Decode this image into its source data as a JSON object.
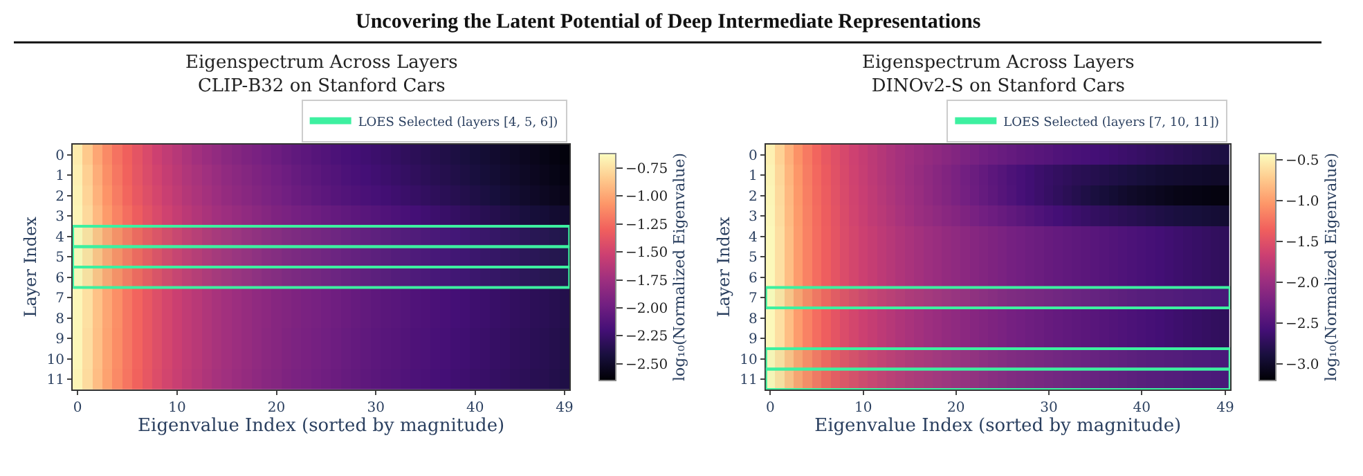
{
  "chart_data": [
    {
      "type": "heatmap",
      "title": "Eigenspectrum Across Layers\nCLIP-B32 on Stanford Cars",
      "xlabel": "Eigenvalue Index (sorted by magnitude)",
      "ylabel": "Layer Index",
      "clabel": "log₁₀(Normalized Eigenvalue)",
      "annotations": [
        "Uncovering the Latent Potential of Deep Intermediate Representations"
      ],
      "x": [
        0,
        1,
        2,
        3,
        4,
        5,
        6,
        7,
        8,
        9,
        10,
        11,
        12,
        13,
        14,
        15,
        16,
        17,
        18,
        19,
        20,
        21,
        22,
        23,
        24,
        25,
        26,
        27,
        28,
        29,
        30,
        31,
        32,
        33,
        34,
        35,
        36,
        37,
        38,
        39,
        40,
        41,
        42,
        43,
        44,
        45,
        46,
        47,
        48,
        49
      ],
      "xlim": [
        -0.5,
        49.5
      ],
      "xticks": [
        0,
        10,
        20,
        30,
        40,
        49
      ],
      "y_categories": [
        "0",
        "1",
        "2",
        "3",
        "4",
        "5",
        "6",
        "7",
        "8",
        "9",
        "10",
        "11"
      ],
      "clim": [
        -2.65,
        -0.62
      ],
      "cticks": [
        {
          "value": -0.75,
          "label": "−0.75"
        },
        {
          "value": -1.0,
          "label": "−1.00"
        },
        {
          "value": -1.25,
          "label": "−1.25"
        },
        {
          "value": -1.5,
          "label": "−1.50"
        },
        {
          "value": -1.75,
          "label": "−1.75"
        },
        {
          "value": -2.0,
          "label": "−2.00"
        },
        {
          "value": -2.25,
          "label": "−2.25"
        },
        {
          "value": -2.5,
          "label": "−2.50"
        }
      ],
      "bands": [
        {
          "axis": "y",
          "from": "4",
          "to": "4",
          "label": "LOES Selected (layers [4, 5, 6])",
          "color": "#3df0a0"
        },
        {
          "axis": "y",
          "from": "5",
          "to": "5",
          "color": "#3df0a0"
        },
        {
          "axis": "y",
          "from": "6",
          "to": "6",
          "color": "#3df0a0"
        }
      ],
      "cells": [
        [
          -0.7,
          -0.85,
          -1.0,
          -1.12,
          -1.22,
          -1.3,
          -1.38,
          -1.45,
          -1.52,
          -1.58,
          -1.63,
          -1.68,
          -1.73,
          -1.77,
          -1.81,
          -1.85,
          -1.88,
          -1.91,
          -1.94,
          -1.97,
          -2.0,
          -2.03,
          -2.06,
          -2.08,
          -2.11,
          -2.13,
          -2.16,
          -2.18,
          -2.2,
          -2.22,
          -2.24,
          -2.26,
          -2.28,
          -2.3,
          -2.32,
          -2.34,
          -2.36,
          -2.38,
          -2.4,
          -2.42,
          -2.44,
          -2.46,
          -2.48,
          -2.5,
          -2.52,
          -2.54,
          -2.56,
          -2.58,
          -2.6,
          -2.62
        ],
        [
          -0.68,
          -0.82,
          -0.97,
          -1.1,
          -1.2,
          -1.29,
          -1.37,
          -1.44,
          -1.5,
          -1.56,
          -1.61,
          -1.66,
          -1.7,
          -1.74,
          -1.78,
          -1.82,
          -1.85,
          -1.88,
          -1.91,
          -1.94,
          -1.97,
          -2.0,
          -2.03,
          -2.06,
          -2.08,
          -2.11,
          -2.13,
          -2.16,
          -2.18,
          -2.2,
          -2.22,
          -2.24,
          -2.26,
          -2.28,
          -2.3,
          -2.32,
          -2.34,
          -2.36,
          -2.38,
          -2.4,
          -2.42,
          -2.44,
          -2.46,
          -2.48,
          -2.5,
          -2.52,
          -2.54,
          -2.56,
          -2.58,
          -2.6
        ],
        [
          -0.67,
          -0.8,
          -0.95,
          -1.08,
          -1.18,
          -1.27,
          -1.35,
          -1.42,
          -1.48,
          -1.54,
          -1.59,
          -1.64,
          -1.68,
          -1.72,
          -1.76,
          -1.8,
          -1.83,
          -1.86,
          -1.89,
          -1.92,
          -1.95,
          -1.98,
          -2.01,
          -2.03,
          -2.06,
          -2.08,
          -2.11,
          -2.13,
          -2.15,
          -2.17,
          -2.19,
          -2.21,
          -2.23,
          -2.25,
          -2.27,
          -2.29,
          -2.31,
          -2.33,
          -2.35,
          -2.37,
          -2.39,
          -2.41,
          -2.43,
          -2.45,
          -2.47,
          -2.49,
          -2.51,
          -2.53,
          -2.55,
          -2.57
        ],
        [
          -0.66,
          -0.78,
          -0.92,
          -1.05,
          -1.15,
          -1.24,
          -1.32,
          -1.39,
          -1.45,
          -1.51,
          -1.56,
          -1.61,
          -1.65,
          -1.69,
          -1.73,
          -1.76,
          -1.79,
          -1.82,
          -1.85,
          -1.88,
          -1.91,
          -1.93,
          -1.96,
          -1.98,
          -2.0,
          -2.02,
          -2.04,
          -2.06,
          -2.08,
          -2.1,
          -2.12,
          -2.14,
          -2.16,
          -2.18,
          -2.2,
          -2.22,
          -2.24,
          -2.26,
          -2.28,
          -2.3,
          -2.32,
          -2.34,
          -2.36,
          -2.38,
          -2.4,
          -2.42,
          -2.44,
          -2.45,
          -2.47,
          -2.48
        ],
        [
          -0.64,
          -0.75,
          -0.88,
          -1.0,
          -1.1,
          -1.19,
          -1.27,
          -1.34,
          -1.4,
          -1.46,
          -1.51,
          -1.56,
          -1.6,
          -1.64,
          -1.68,
          -1.71,
          -1.74,
          -1.77,
          -1.8,
          -1.83,
          -1.85,
          -1.88,
          -1.9,
          -1.92,
          -1.94,
          -1.96,
          -1.98,
          -2.0,
          -2.02,
          -2.04,
          -2.06,
          -2.08,
          -2.1,
          -2.12,
          -2.13,
          -2.15,
          -2.17,
          -2.19,
          -2.2,
          -2.22,
          -2.24,
          -2.25,
          -2.27,
          -2.29,
          -2.3,
          -2.32,
          -2.34,
          -2.35,
          -2.37,
          -2.38
        ],
        [
          -0.64,
          -0.75,
          -0.88,
          -1.0,
          -1.1,
          -1.19,
          -1.27,
          -1.34,
          -1.41,
          -1.47,
          -1.52,
          -1.57,
          -1.61,
          -1.65,
          -1.69,
          -1.72,
          -1.75,
          -1.78,
          -1.81,
          -1.84,
          -1.86,
          -1.89,
          -1.91,
          -1.93,
          -1.95,
          -1.97,
          -1.99,
          -2.01,
          -2.03,
          -2.05,
          -2.07,
          -2.09,
          -2.11,
          -2.12,
          -2.14,
          -2.16,
          -2.18,
          -2.19,
          -2.21,
          -2.22,
          -2.24,
          -2.26,
          -2.27,
          -2.29,
          -2.3,
          -2.32,
          -2.33,
          -2.35,
          -2.36,
          -2.37
        ],
        [
          -0.64,
          -0.75,
          -0.88,
          -1.0,
          -1.1,
          -1.19,
          -1.27,
          -1.34,
          -1.41,
          -1.47,
          -1.52,
          -1.57,
          -1.61,
          -1.65,
          -1.69,
          -1.72,
          -1.75,
          -1.78,
          -1.81,
          -1.84,
          -1.86,
          -1.89,
          -1.91,
          -1.93,
          -1.95,
          -1.97,
          -1.99,
          -2.01,
          -2.03,
          -2.05,
          -2.07,
          -2.09,
          -2.11,
          -2.12,
          -2.14,
          -2.16,
          -2.18,
          -2.19,
          -2.21,
          -2.22,
          -2.24,
          -2.26,
          -2.27,
          -2.29,
          -2.3,
          -2.32,
          -2.33,
          -2.35,
          -2.36,
          -2.37
        ],
        [
          -0.65,
          -0.75,
          -0.88,
          -1.0,
          -1.1,
          -1.2,
          -1.28,
          -1.35,
          -1.42,
          -1.48,
          -1.53,
          -1.58,
          -1.62,
          -1.66,
          -1.7,
          -1.73,
          -1.76,
          -1.79,
          -1.82,
          -1.84,
          -1.87,
          -1.89,
          -1.91,
          -1.93,
          -1.95,
          -1.97,
          -1.99,
          -2.01,
          -2.03,
          -2.05,
          -2.07,
          -2.09,
          -2.1,
          -2.12,
          -2.14,
          -2.15,
          -2.17,
          -2.18,
          -2.2,
          -2.21,
          -2.23,
          -2.24,
          -2.26,
          -2.27,
          -2.29,
          -2.3,
          -2.32,
          -2.33,
          -2.35,
          -2.37
        ],
        [
          -0.65,
          -0.75,
          -0.88,
          -1.0,
          -1.1,
          -1.2,
          -1.28,
          -1.35,
          -1.42,
          -1.48,
          -1.53,
          -1.58,
          -1.62,
          -1.66,
          -1.7,
          -1.73,
          -1.76,
          -1.79,
          -1.82,
          -1.84,
          -1.87,
          -1.89,
          -1.91,
          -1.93,
          -1.95,
          -1.97,
          -1.99,
          -2.01,
          -2.03,
          -2.05,
          -2.07,
          -2.09,
          -2.1,
          -2.12,
          -2.14,
          -2.15,
          -2.17,
          -2.18,
          -2.2,
          -2.21,
          -2.23,
          -2.24,
          -2.26,
          -2.27,
          -2.29,
          -2.3,
          -2.32,
          -2.33,
          -2.35,
          -2.37
        ],
        [
          -0.65,
          -0.76,
          -0.89,
          -1.01,
          -1.11,
          -1.2,
          -1.28,
          -1.35,
          -1.42,
          -1.48,
          -1.53,
          -1.58,
          -1.62,
          -1.66,
          -1.7,
          -1.73,
          -1.76,
          -1.79,
          -1.82,
          -1.85,
          -1.87,
          -1.9,
          -1.92,
          -1.94,
          -1.96,
          -1.98,
          -2.0,
          -2.02,
          -2.04,
          -2.06,
          -2.08,
          -2.1,
          -2.11,
          -2.13,
          -2.15,
          -2.16,
          -2.18,
          -2.19,
          -2.21,
          -2.22,
          -2.24,
          -2.25,
          -2.27,
          -2.28,
          -2.3,
          -2.31,
          -2.33,
          -2.34,
          -2.36,
          -2.38
        ],
        [
          -0.65,
          -0.76,
          -0.89,
          -1.01,
          -1.11,
          -1.2,
          -1.28,
          -1.35,
          -1.42,
          -1.48,
          -1.53,
          -1.58,
          -1.62,
          -1.66,
          -1.7,
          -1.73,
          -1.76,
          -1.79,
          -1.82,
          -1.85,
          -1.87,
          -1.9,
          -1.92,
          -1.94,
          -1.96,
          -1.98,
          -2.0,
          -2.02,
          -2.04,
          -2.06,
          -2.08,
          -2.1,
          -2.11,
          -2.13,
          -2.15,
          -2.16,
          -2.18,
          -2.19,
          -2.21,
          -2.22,
          -2.24,
          -2.25,
          -2.27,
          -2.28,
          -2.3,
          -2.31,
          -2.33,
          -2.34,
          -2.36,
          -2.38
        ],
        [
          -0.66,
          -0.77,
          -0.9,
          -1.02,
          -1.12,
          -1.21,
          -1.29,
          -1.36,
          -1.43,
          -1.49,
          -1.54,
          -1.59,
          -1.63,
          -1.67,
          -1.71,
          -1.74,
          -1.77,
          -1.8,
          -1.83,
          -1.86,
          -1.88,
          -1.91,
          -1.93,
          -1.95,
          -1.97,
          -1.99,
          -2.01,
          -2.03,
          -2.05,
          -2.07,
          -2.09,
          -2.11,
          -2.12,
          -2.14,
          -2.16,
          -2.17,
          -2.19,
          -2.2,
          -2.22,
          -2.23,
          -2.25,
          -2.26,
          -2.28,
          -2.29,
          -2.31,
          -2.32,
          -2.34,
          -2.35,
          -2.37,
          -2.39
        ]
      ]
    },
    {
      "type": "heatmap",
      "title": "Eigenspectrum Across Layers\nDINOv2-S on Stanford Cars",
      "xlabel": "Eigenvalue Index (sorted by magnitude)",
      "ylabel": "Layer Index",
      "clabel": "log₁₀(Normalized Eigenvalue)",
      "x": [
        0,
        1,
        2,
        3,
        4,
        5,
        6,
        7,
        8,
        9,
        10,
        11,
        12,
        13,
        14,
        15,
        16,
        17,
        18,
        19,
        20,
        21,
        22,
        23,
        24,
        25,
        26,
        27,
        28,
        29,
        30,
        31,
        32,
        33,
        34,
        35,
        36,
        37,
        38,
        39,
        40,
        41,
        42,
        43,
        44,
        45,
        46,
        47,
        48,
        49
      ],
      "xlim": [
        -0.5,
        49.5
      ],
      "xticks": [
        0,
        10,
        20,
        30,
        40,
        49
      ],
      "y_categories": [
        "0",
        "1",
        "2",
        "3",
        "4",
        "5",
        "6",
        "7",
        "8",
        "9",
        "10",
        "11"
      ],
      "clim": [
        -3.2,
        -0.42
      ],
      "cticks": [
        {
          "value": -0.5,
          "label": "−0.5"
        },
        {
          "value": -1.0,
          "label": "−1.0"
        },
        {
          "value": -1.5,
          "label": "−1.5"
        },
        {
          "value": -2.0,
          "label": "−2.0"
        },
        {
          "value": -2.5,
          "label": "−2.5"
        },
        {
          "value": -3.0,
          "label": "−3.0"
        }
      ],
      "bands": [
        {
          "axis": "y",
          "from": "7",
          "to": "7",
          "label": "LOES Selected (layers [7, 10, 11])",
          "color": "#3df0a0"
        },
        {
          "axis": "y",
          "from": "10",
          "to": "10",
          "color": "#3df0a0"
        },
        {
          "axis": "y",
          "from": "11",
          "to": "11",
          "color": "#3df0a0"
        }
      ],
      "cells": [
        [
          -0.5,
          -0.68,
          -0.88,
          -1.06,
          -1.2,
          -1.32,
          -1.42,
          -1.5,
          -1.58,
          -1.65,
          -1.71,
          -1.77,
          -1.82,
          -1.87,
          -1.92,
          -1.96,
          -2.0,
          -2.04,
          -2.08,
          -2.12,
          -2.16,
          -2.2,
          -2.24,
          -2.28,
          -2.31,
          -2.34,
          -2.37,
          -2.4,
          -2.42,
          -2.45,
          -2.47,
          -2.5,
          -2.52,
          -2.54,
          -2.56,
          -2.58,
          -2.6,
          -2.62,
          -2.64,
          -2.66,
          -2.68,
          -2.7,
          -2.72,
          -2.74,
          -2.76,
          -2.78,
          -2.8,
          -2.82,
          -2.84,
          -2.86
        ],
        [
          -0.48,
          -0.65,
          -0.85,
          -1.03,
          -1.18,
          -1.3,
          -1.4,
          -1.49,
          -1.57,
          -1.64,
          -1.7,
          -1.76,
          -1.82,
          -1.87,
          -1.92,
          -1.97,
          -2.02,
          -2.07,
          -2.12,
          -2.17,
          -2.22,
          -2.27,
          -2.32,
          -2.37,
          -2.42,
          -2.47,
          -2.52,
          -2.56,
          -2.6,
          -2.64,
          -2.67,
          -2.7,
          -2.73,
          -2.76,
          -2.78,
          -2.8,
          -2.82,
          -2.84,
          -2.86,
          -2.88,
          -2.9,
          -2.92,
          -2.94,
          -2.95,
          -2.96,
          -2.97,
          -2.98,
          -2.99,
          -3.0,
          -3.0
        ],
        [
          -0.47,
          -0.63,
          -0.83,
          -1.02,
          -1.17,
          -1.29,
          -1.39,
          -1.48,
          -1.56,
          -1.63,
          -1.69,
          -1.75,
          -1.81,
          -1.86,
          -1.91,
          -1.96,
          -2.01,
          -2.06,
          -2.11,
          -2.16,
          -2.21,
          -2.26,
          -2.31,
          -2.36,
          -2.41,
          -2.46,
          -2.51,
          -2.56,
          -2.6,
          -2.64,
          -2.68,
          -2.72,
          -2.76,
          -2.8,
          -2.84,
          -2.88,
          -2.91,
          -2.94,
          -2.97,
          -3.0,
          -3.02,
          -3.04,
          -3.06,
          -3.08,
          -3.1,
          -3.11,
          -3.12,
          -3.13,
          -3.14,
          -3.15
        ],
        [
          -0.46,
          -0.62,
          -0.82,
          -1.01,
          -1.16,
          -1.28,
          -1.38,
          -1.47,
          -1.55,
          -1.62,
          -1.68,
          -1.74,
          -1.79,
          -1.84,
          -1.89,
          -1.94,
          -1.99,
          -2.03,
          -2.07,
          -2.11,
          -2.15,
          -2.19,
          -2.23,
          -2.27,
          -2.31,
          -2.35,
          -2.39,
          -2.43,
          -2.47,
          -2.51,
          -2.55,
          -2.58,
          -2.61,
          -2.64,
          -2.67,
          -2.7,
          -2.72,
          -2.74,
          -2.76,
          -2.78,
          -2.8,
          -2.82,
          -2.84,
          -2.86,
          -2.88,
          -2.89,
          -2.9,
          -2.92,
          -2.93,
          -2.95
        ],
        [
          -0.45,
          -0.6,
          -0.8,
          -1.0,
          -1.15,
          -1.27,
          -1.37,
          -1.46,
          -1.54,
          -1.6,
          -1.66,
          -1.71,
          -1.76,
          -1.81,
          -1.85,
          -1.89,
          -1.93,
          -1.97,
          -2.0,
          -2.04,
          -2.07,
          -2.1,
          -2.13,
          -2.16,
          -2.19,
          -2.22,
          -2.25,
          -2.27,
          -2.3,
          -2.32,
          -2.35,
          -2.37,
          -2.39,
          -2.41,
          -2.43,
          -2.45,
          -2.47,
          -2.49,
          -2.51,
          -2.53,
          -2.55,
          -2.57,
          -2.59,
          -2.61,
          -2.63,
          -2.65,
          -2.67,
          -2.69,
          -2.71,
          -2.73
        ],
        [
          -0.45,
          -0.6,
          -0.8,
          -1.0,
          -1.15,
          -1.27,
          -1.37,
          -1.46,
          -1.54,
          -1.6,
          -1.66,
          -1.71,
          -1.76,
          -1.81,
          -1.85,
          -1.89,
          -1.93,
          -1.97,
          -2.0,
          -2.04,
          -2.07,
          -2.1,
          -2.13,
          -2.16,
          -2.19,
          -2.22,
          -2.25,
          -2.27,
          -2.3,
          -2.32,
          -2.35,
          -2.37,
          -2.39,
          -2.41,
          -2.43,
          -2.45,
          -2.47,
          -2.49,
          -2.51,
          -2.53,
          -2.55,
          -2.57,
          -2.59,
          -2.61,
          -2.63,
          -2.65,
          -2.67,
          -2.69,
          -2.71,
          -2.73
        ],
        [
          -0.45,
          -0.6,
          -0.8,
          -1.0,
          -1.15,
          -1.27,
          -1.37,
          -1.46,
          -1.54,
          -1.6,
          -1.66,
          -1.71,
          -1.76,
          -1.81,
          -1.85,
          -1.89,
          -1.93,
          -1.97,
          -2.0,
          -2.04,
          -2.07,
          -2.1,
          -2.13,
          -2.16,
          -2.19,
          -2.22,
          -2.25,
          -2.27,
          -2.3,
          -2.32,
          -2.35,
          -2.37,
          -2.39,
          -2.41,
          -2.43,
          -2.45,
          -2.47,
          -2.49,
          -2.51,
          -2.53,
          -2.55,
          -2.57,
          -2.59,
          -2.61,
          -2.63,
          -2.65,
          -2.67,
          -2.69,
          -2.71,
          -2.73
        ],
        [
          -0.44,
          -0.58,
          -0.77,
          -0.96,
          -1.11,
          -1.23,
          -1.33,
          -1.42,
          -1.49,
          -1.55,
          -1.61,
          -1.66,
          -1.71,
          -1.75,
          -1.79,
          -1.83,
          -1.86,
          -1.89,
          -1.92,
          -1.95,
          -1.98,
          -2.01,
          -2.04,
          -2.07,
          -2.1,
          -2.13,
          -2.16,
          -2.18,
          -2.2,
          -2.22,
          -2.24,
          -2.26,
          -2.28,
          -2.3,
          -2.32,
          -2.34,
          -2.36,
          -2.38,
          -2.4,
          -2.42,
          -2.44,
          -2.45,
          -2.46,
          -2.47,
          -2.48,
          -2.5,
          -2.51,
          -2.52,
          -2.54,
          -2.55
        ],
        [
          -0.45,
          -0.6,
          -0.8,
          -1.0,
          -1.15,
          -1.27,
          -1.37,
          -1.46,
          -1.54,
          -1.6,
          -1.66,
          -1.71,
          -1.76,
          -1.81,
          -1.85,
          -1.89,
          -1.93,
          -1.97,
          -2.0,
          -2.04,
          -2.07,
          -2.1,
          -2.13,
          -2.16,
          -2.19,
          -2.22,
          -2.25,
          -2.27,
          -2.3,
          -2.32,
          -2.35,
          -2.37,
          -2.39,
          -2.41,
          -2.43,
          -2.45,
          -2.47,
          -2.49,
          -2.51,
          -2.53,
          -2.55,
          -2.57,
          -2.59,
          -2.61,
          -2.63,
          -2.65,
          -2.67,
          -2.69,
          -2.71,
          -2.73
        ],
        [
          -0.45,
          -0.6,
          -0.8,
          -1.0,
          -1.15,
          -1.27,
          -1.37,
          -1.46,
          -1.54,
          -1.6,
          -1.66,
          -1.71,
          -1.76,
          -1.81,
          -1.85,
          -1.89,
          -1.93,
          -1.97,
          -2.0,
          -2.04,
          -2.07,
          -2.1,
          -2.13,
          -2.16,
          -2.19,
          -2.22,
          -2.25,
          -2.27,
          -2.3,
          -2.32,
          -2.35,
          -2.37,
          -2.39,
          -2.41,
          -2.43,
          -2.45,
          -2.47,
          -2.49,
          -2.51,
          -2.53,
          -2.55,
          -2.57,
          -2.59,
          -2.61,
          -2.63,
          -2.65,
          -2.67,
          -2.69,
          -2.71,
          -2.73
        ],
        [
          -0.46,
          -0.6,
          -0.78,
          -0.96,
          -1.1,
          -1.22,
          -1.32,
          -1.41,
          -1.48,
          -1.54,
          -1.6,
          -1.65,
          -1.7,
          -1.74,
          -1.78,
          -1.82,
          -1.85,
          -1.88,
          -1.91,
          -1.94,
          -1.97,
          -2.0,
          -2.03,
          -2.06,
          -2.09,
          -2.12,
          -2.15,
          -2.17,
          -2.19,
          -2.21,
          -2.23,
          -2.25,
          -2.27,
          -2.29,
          -2.31,
          -2.33,
          -2.35,
          -2.37,
          -2.39,
          -2.41,
          -2.43,
          -2.44,
          -2.45,
          -2.46,
          -2.47,
          -2.49,
          -2.5,
          -2.51,
          -2.53,
          -2.54
        ],
        [
          -0.46,
          -0.6,
          -0.78,
          -0.96,
          -1.1,
          -1.22,
          -1.32,
          -1.41,
          -1.48,
          -1.54,
          -1.6,
          -1.65,
          -1.7,
          -1.74,
          -1.78,
          -1.82,
          -1.85,
          -1.88,
          -1.91,
          -1.94,
          -1.97,
          -2.0,
          -2.03,
          -2.06,
          -2.09,
          -2.12,
          -2.15,
          -2.17,
          -2.19,
          -2.21,
          -2.23,
          -2.25,
          -2.27,
          -2.29,
          -2.31,
          -2.33,
          -2.35,
          -2.37,
          -2.39,
          -2.41,
          -2.43,
          -2.44,
          -2.45,
          -2.46,
          -2.47,
          -2.49,
          -2.5,
          -2.51,
          -2.53,
          -2.54
        ]
      ]
    }
  ]
}
